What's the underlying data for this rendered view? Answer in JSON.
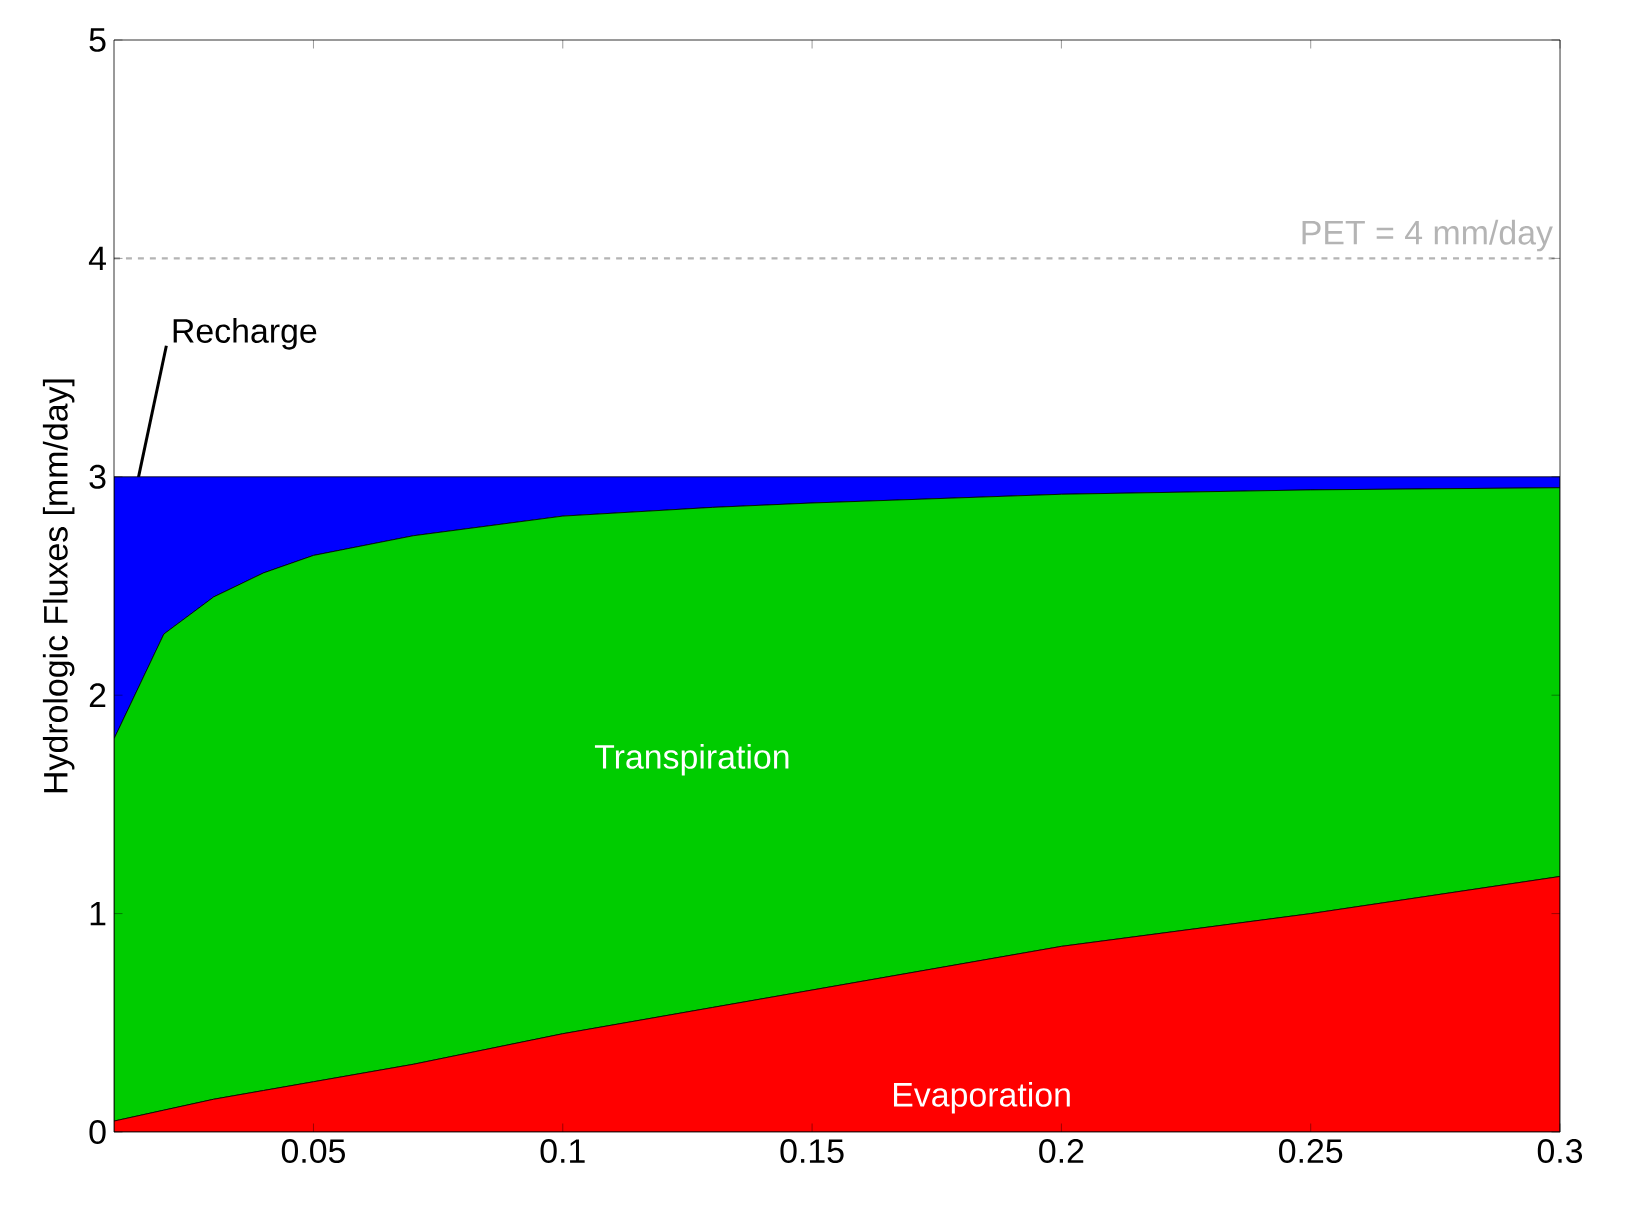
{
  "chart_data": {
    "type": "area",
    "stacked": true,
    "ylabel": "Hydrologic Fluxes [mm/day]",
    "x": [
      0.01,
      0.02,
      0.03,
      0.04,
      0.05,
      0.07,
      0.1,
      0.13,
      0.15,
      0.2,
      0.25,
      0.3
    ],
    "series": [
      {
        "name": "Evaporation",
        "color": "#ff0000",
        "values": [
          0.05,
          0.1,
          0.15,
          0.19,
          0.23,
          0.31,
          0.45,
          0.57,
          0.65,
          0.85,
          1.0,
          1.17
        ]
      },
      {
        "name": "Transpiration",
        "color": "#00cc00",
        "values": [
          1.75,
          2.18,
          2.3,
          2.37,
          2.41,
          2.42,
          2.37,
          2.29,
          2.23,
          2.07,
          1.94,
          1.78
        ]
      },
      {
        "name": "Recharge",
        "color": "#0000ff",
        "values": [
          1.2,
          0.72,
          0.55,
          0.44,
          0.36,
          0.27,
          0.18,
          0.14,
          0.12,
          0.08,
          0.06,
          0.05
        ]
      }
    ],
    "xlim": [
      0.01,
      0.3
    ],
    "ylim": [
      0,
      5
    ],
    "xticks": [
      0.05,
      0.1,
      0.15,
      0.2,
      0.25,
      0.3
    ],
    "yticks": [
      0,
      1,
      2,
      3,
      4,
      5
    ],
    "ref_lines": [
      {
        "axis": "y",
        "value": 4,
        "label": "PET = 4 mm/day",
        "color": "#b4b4b4",
        "line_style": "dashed"
      }
    ],
    "grid": false,
    "legend": false
  }
}
